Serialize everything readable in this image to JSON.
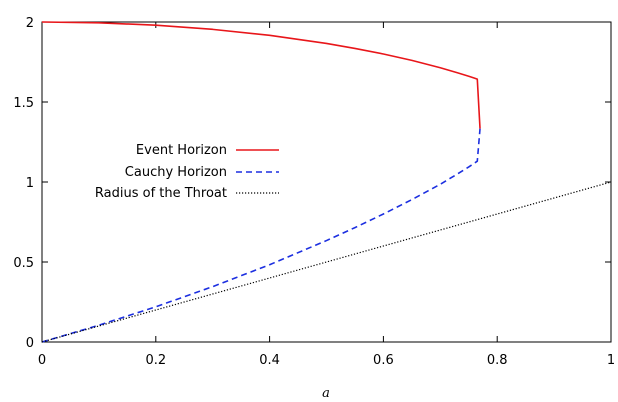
{
  "chart_data": {
    "type": "line",
    "title": "",
    "xlabel": "a",
    "ylabel": "",
    "xlim": [
      0,
      1
    ],
    "ylim": [
      0,
      2
    ],
    "xticks": [
      0,
      0.2,
      0.4,
      0.6,
      0.8,
      1
    ],
    "xtick_labels": [
      "0",
      "0.2",
      "0.4",
      "0.6",
      "0.8",
      "1"
    ],
    "yticks": [
      0,
      0.5,
      1,
      1.5,
      2
    ],
    "ytick_labels": [
      "0",
      "0.5",
      "1",
      "1.5",
      "2"
    ],
    "grid": false,
    "legend_position": "left-middle",
    "series": [
      {
        "name": "Event Horizon",
        "style": "solid",
        "color": "#e8161a",
        "x": [
          0,
          0.1,
          0.2,
          0.3,
          0.4,
          0.5,
          0.55,
          0.6,
          0.65,
          0.7,
          0.73,
          0.75,
          0.76,
          0.765,
          0.7698
        ],
        "y": [
          2.0,
          1.995,
          1.98,
          1.954,
          1.917,
          1.866,
          1.835,
          1.8,
          1.76,
          1.714,
          1.683,
          1.661,
          1.649,
          1.643,
          1.3333
        ]
      },
      {
        "name": "Cauchy Horizon",
        "style": "dashed",
        "color": "#1c2fe0",
        "x": [
          0,
          0.1,
          0.2,
          0.3,
          0.4,
          0.5,
          0.55,
          0.6,
          0.65,
          0.7,
          0.73,
          0.75,
          0.76,
          0.765,
          0.7698
        ],
        "y": [
          0,
          0.105,
          0.22,
          0.346,
          0.483,
          0.634,
          0.715,
          0.8,
          0.89,
          0.986,
          1.05,
          1.094,
          1.118,
          1.13,
          1.3333
        ]
      },
      {
        "name": "Radius of the Throat",
        "style": "dotted",
        "color": "#000000",
        "x": [
          0,
          1
        ],
        "y": [
          0,
          1
        ]
      }
    ]
  }
}
